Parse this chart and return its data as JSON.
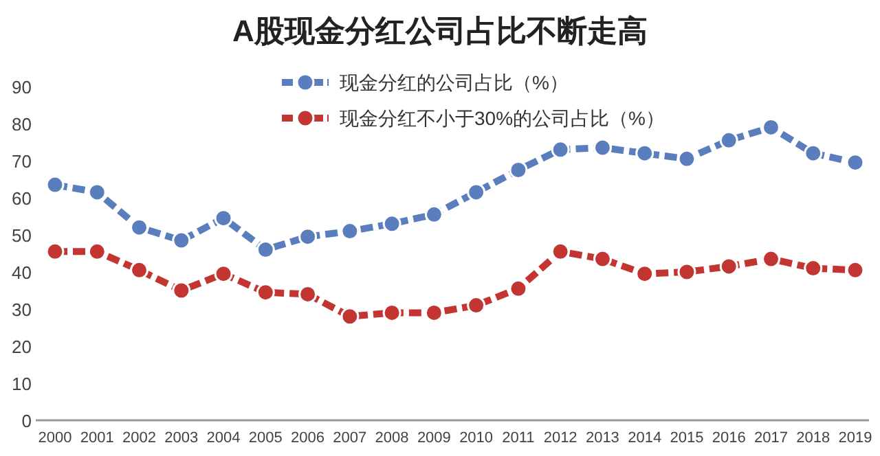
{
  "chart_data": {
    "type": "line",
    "title": "A股现金分红公司占比不断走高",
    "categories": [
      "2000",
      "2001",
      "2002",
      "2003",
      "2004",
      "2005",
      "2006",
      "2007",
      "2008",
      "2009",
      "2010",
      "2011",
      "2012",
      "2013",
      "2014",
      "2015",
      "2016",
      "2017",
      "2018",
      "2019"
    ],
    "series": [
      {
        "name": "现金分红的公司占比（%）",
        "color": "#5a7dbd",
        "values": [
          63.5,
          61.5,
          52,
          48.5,
          54.5,
          46,
          49.5,
          51,
          53,
          55.5,
          61.5,
          67.5,
          73,
          73.5,
          72,
          70.5,
          75.5,
          79,
          72,
          69.5
        ]
      },
      {
        "name": "现金分红不小于30%的公司占比（%）",
        "color": "#c23531",
        "values": [
          45.5,
          45.5,
          40.5,
          35,
          39.5,
          34.5,
          34,
          28,
          29,
          29,
          31,
          35.5,
          45.5,
          43.5,
          39.5,
          40,
          41.5,
          43.5,
          41,
          40.5
        ]
      }
    ],
    "ylim": [
      0,
      90
    ],
    "yticks": [
      0,
      10,
      20,
      30,
      40,
      50,
      60,
      70,
      80,
      90
    ],
    "grid": false,
    "legend": "top",
    "marker": "circle",
    "line_style": "dashed"
  }
}
